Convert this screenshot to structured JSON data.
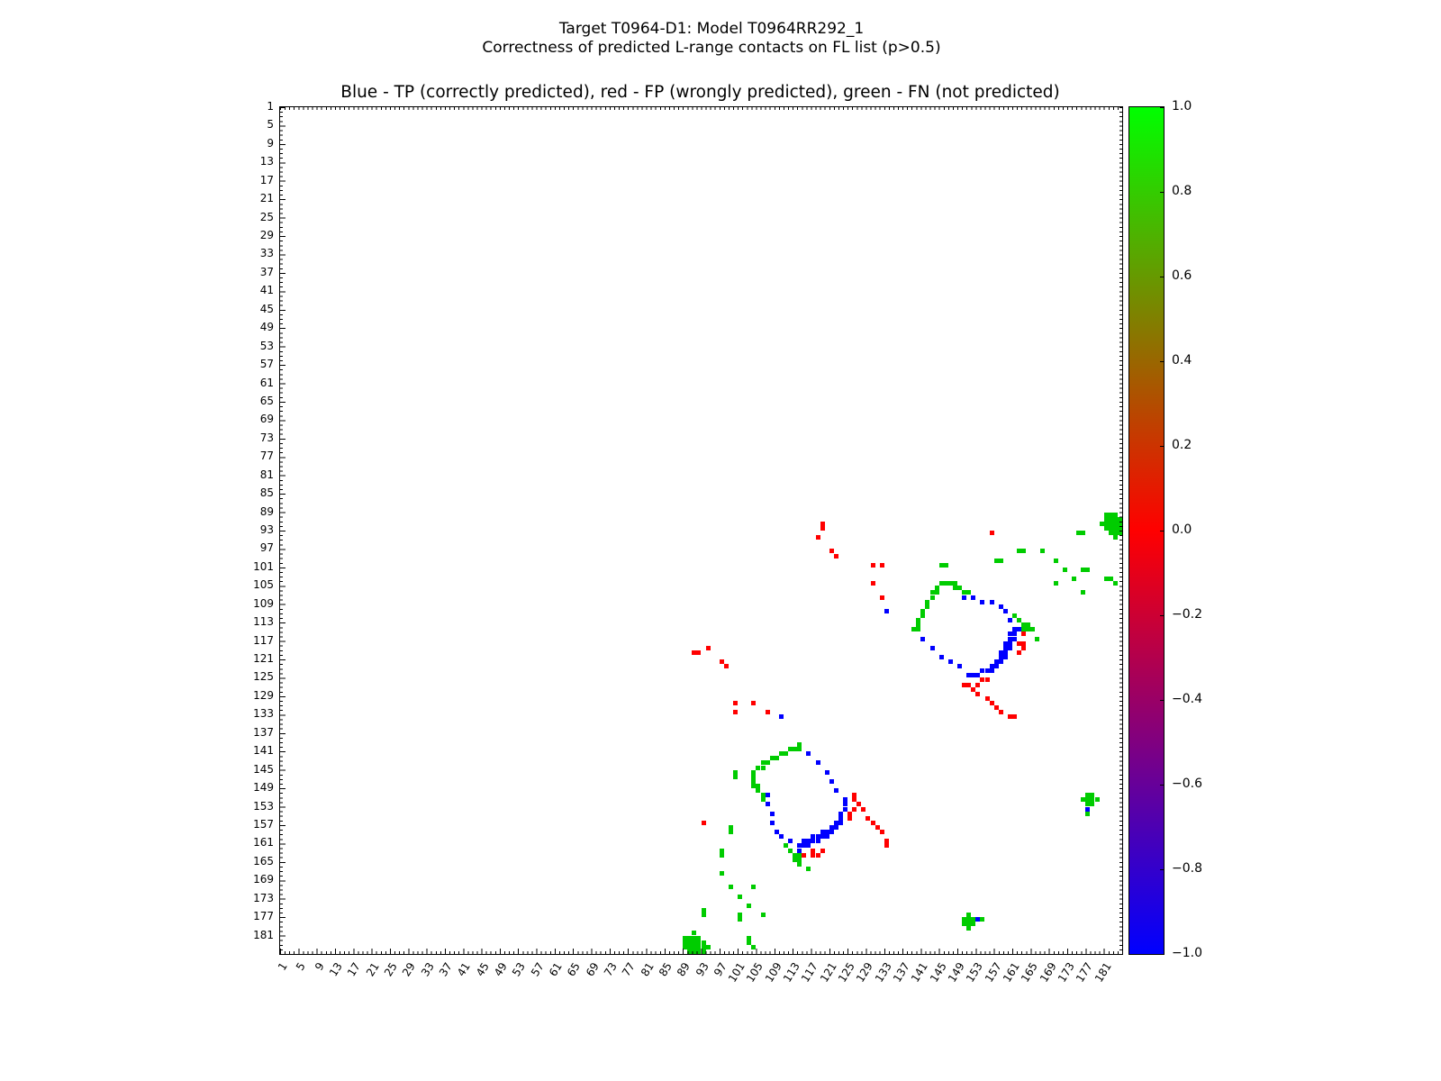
{
  "header": {
    "title_line1": "Target T0964-D1: Model T0964RR292_1",
    "title_line2": "Correctness of predicted L-range contacts on FL list (p>0.5)"
  },
  "chart_data": {
    "type": "scatter",
    "title": "Blue - TP (correctly predicted), red - FP (wrongly predicted), green - FN (not predicted)",
    "xlabel": "",
    "ylabel": "",
    "xlim": [
      1,
      185
    ],
    "ylim": [
      1,
      185
    ],
    "y_axis_inverted": true,
    "grid": false,
    "symmetric": true,
    "tick_values": [
      1,
      5,
      9,
      13,
      17,
      21,
      25,
      29,
      33,
      37,
      41,
      45,
      49,
      53,
      57,
      61,
      65,
      69,
      73,
      77,
      81,
      85,
      89,
      93,
      97,
      101,
      105,
      109,
      113,
      117,
      121,
      125,
      129,
      133,
      137,
      141,
      145,
      149,
      153,
      157,
      161,
      165,
      169,
      173,
      177,
      181
    ],
    "series": [
      {
        "name": "TP (correctly predicted)",
        "color": "#0000ff",
        "points": [
          [
            162,
            114
          ],
          [
            161,
            114
          ],
          [
            161,
            115
          ],
          [
            160,
            115
          ],
          [
            160,
            116
          ],
          [
            161,
            116
          ],
          [
            159,
            117
          ],
          [
            160,
            117
          ],
          [
            159,
            118
          ],
          [
            160,
            118
          ],
          [
            158,
            119
          ],
          [
            159,
            119
          ],
          [
            158,
            120
          ],
          [
            159,
            120
          ],
          [
            157,
            121
          ],
          [
            158,
            121
          ],
          [
            156,
            122
          ],
          [
            157,
            122
          ],
          [
            155,
            123
          ],
          [
            156,
            123
          ],
          [
            154,
            123
          ],
          [
            153,
            124
          ],
          [
            152,
            124
          ],
          [
            151,
            124
          ],
          [
            150,
            107
          ],
          [
            152,
            107
          ],
          [
            154,
            108
          ],
          [
            156,
            108
          ],
          [
            158,
            109
          ],
          [
            159,
            110
          ],
          [
            160,
            112
          ],
          [
            141,
            116
          ],
          [
            143,
            118
          ],
          [
            145,
            120
          ],
          [
            147,
            121
          ],
          [
            149,
            122
          ],
          [
            133,
            110
          ],
          [
            177,
            153
          ]
        ]
      },
      {
        "name": "FP (wrongly predicted)",
        "color": "#ff0000",
        "points": [
          [
            119,
            91
          ],
          [
            119,
            92
          ],
          [
            118,
            94
          ],
          [
            121,
            97
          ],
          [
            122,
            98
          ],
          [
            130,
            100
          ],
          [
            132,
            100
          ],
          [
            156,
            93
          ],
          [
            130,
            104
          ],
          [
            132,
            107
          ],
          [
            151,
            126
          ],
          [
            152,
            127
          ],
          [
            153,
            128
          ],
          [
            155,
            129
          ],
          [
            156,
            130
          ],
          [
            157,
            131
          ],
          [
            158,
            132
          ],
          [
            160,
            133
          ],
          [
            161,
            133
          ],
          [
            163,
            115
          ],
          [
            162,
            117
          ],
          [
            163,
            117
          ],
          [
            163,
            118
          ],
          [
            162,
            119
          ],
          [
            154,
            125
          ],
          [
            155,
            125
          ],
          [
            153,
            126
          ],
          [
            150,
            126
          ]
        ]
      },
      {
        "name": "FN (not predicted)",
        "color": "#00cc00",
        "points": [
          [
            181,
            89
          ],
          [
            182,
            89
          ],
          [
            183,
            89
          ],
          [
            181,
            90
          ],
          [
            182,
            90
          ],
          [
            183,
            90
          ],
          [
            184,
            90
          ],
          [
            180,
            91
          ],
          [
            181,
            91
          ],
          [
            182,
            91
          ],
          [
            183,
            91
          ],
          [
            184,
            91
          ],
          [
            181,
            92
          ],
          [
            182,
            92
          ],
          [
            183,
            92
          ],
          [
            184,
            92
          ],
          [
            182,
            93
          ],
          [
            183,
            93
          ],
          [
            184,
            93
          ],
          [
            183,
            94
          ],
          [
            175,
            93
          ],
          [
            176,
            93
          ],
          [
            167,
            97
          ],
          [
            162,
            97
          ],
          [
            163,
            97
          ],
          [
            157,
            99
          ],
          [
            158,
            99
          ],
          [
            170,
            99
          ],
          [
            176,
            101
          ],
          [
            177,
            101
          ],
          [
            172,
            101
          ],
          [
            181,
            103
          ],
          [
            182,
            103
          ],
          [
            174,
            103
          ],
          [
            183,
            104
          ],
          [
            170,
            104
          ],
          [
            176,
            106
          ],
          [
            145,
            100
          ],
          [
            146,
            100
          ],
          [
            143,
            107
          ],
          [
            143,
            106
          ],
          [
            144,
            106
          ],
          [
            144,
            105
          ],
          [
            145,
            104
          ],
          [
            146,
            104
          ],
          [
            147,
            104
          ],
          [
            148,
            104
          ],
          [
            148,
            105
          ],
          [
            149,
            105
          ],
          [
            150,
            106
          ],
          [
            151,
            106
          ],
          [
            142,
            108
          ],
          [
            142,
            109
          ],
          [
            141,
            110
          ],
          [
            141,
            111
          ],
          [
            140,
            112
          ],
          [
            140,
            113
          ],
          [
            139,
            114
          ],
          [
            140,
            114
          ],
          [
            161,
            111
          ],
          [
            162,
            112
          ],
          [
            163,
            113
          ],
          [
            164,
            113
          ],
          [
            163,
            114
          ],
          [
            164,
            114
          ],
          [
            165,
            114
          ],
          [
            166,
            116
          ],
          [
            177,
            150
          ],
          [
            178,
            150
          ],
          [
            176,
            151
          ],
          [
            177,
            151
          ],
          [
            178,
            151
          ],
          [
            179,
            151
          ],
          [
            177,
            152
          ],
          [
            178,
            152
          ],
          [
            177,
            154
          ]
        ]
      }
    ],
    "colorbar": {
      "ticks": [
        "1.0",
        "0.8",
        "0.6",
        "0.4",
        "0.2",
        "0.0",
        "−0.2",
        "−0.4",
        "−0.6",
        "−0.8",
        "−1.0"
      ],
      "gradient_bottom_to_top": [
        "#0000ff",
        "#800080",
        "#ff0000",
        "#808000",
        "#00ff00"
      ]
    }
  }
}
